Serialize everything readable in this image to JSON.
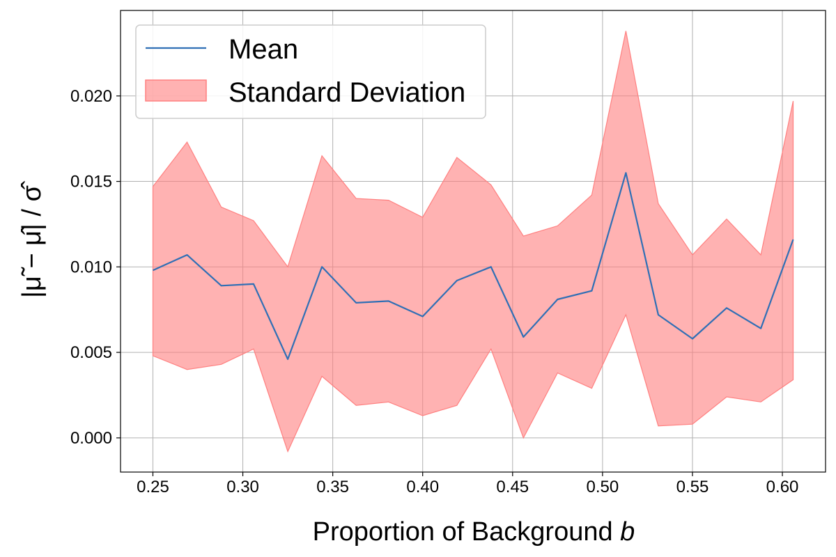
{
  "chart_data": {
    "type": "line",
    "title": "",
    "xlabel": "Proportion of Background",
    "xlabel_var": "b",
    "ylabel": "|μ̃ − μ̂| / σ̂",
    "x": [
      0.25,
      0.269,
      0.288,
      0.306,
      0.325,
      0.344,
      0.363,
      0.381,
      0.4,
      0.419,
      0.438,
      0.456,
      0.475,
      0.494,
      0.513,
      0.531,
      0.55,
      0.569,
      0.588,
      0.606
    ],
    "series": [
      {
        "name": "Mean",
        "color": "#2f6fb5",
        "values": [
          0.0098,
          0.0107,
          0.0089,
          0.009,
          0.0046,
          0.01,
          0.0079,
          0.008,
          0.0071,
          0.0092,
          0.01,
          0.0059,
          0.0081,
          0.0086,
          0.0155,
          0.0072,
          0.0058,
          0.0076,
          0.0064,
          0.0116
        ]
      },
      {
        "name": "Standard Deviation",
        "color": "#ff7f7f",
        "upper": [
          0.0147,
          0.0173,
          0.0135,
          0.0127,
          0.01,
          0.0165,
          0.014,
          0.0139,
          0.0129,
          0.0164,
          0.0148,
          0.0118,
          0.0124,
          0.0142,
          0.0238,
          0.0137,
          0.0107,
          0.0128,
          0.0107,
          0.0197
        ],
        "lower": [
          0.0048,
          0.004,
          0.0043,
          0.0052,
          -0.0008,
          0.0036,
          0.0019,
          0.0021,
          0.0013,
          0.0019,
          0.0052,
          0.0,
          0.0038,
          0.0029,
          0.0072,
          0.0007,
          0.0008,
          0.0024,
          0.0021,
          0.0034
        ]
      }
    ],
    "xlim": [
      0.232,
      0.624
    ],
    "ylim": [
      -0.002,
      0.025
    ],
    "xticks": [
      0.25,
      0.3,
      0.35,
      0.4,
      0.45,
      0.5,
      0.55,
      0.6
    ],
    "xtick_labels": [
      "0.25",
      "0.30",
      "0.35",
      "0.40",
      "0.45",
      "0.50",
      "0.55",
      "0.60"
    ],
    "yticks": [
      0.0,
      0.005,
      0.01,
      0.015,
      0.02
    ],
    "ytick_labels": [
      "0.000",
      "0.005",
      "0.010",
      "0.015",
      "0.020"
    ],
    "grid": true,
    "legend_position": "top-left"
  }
}
